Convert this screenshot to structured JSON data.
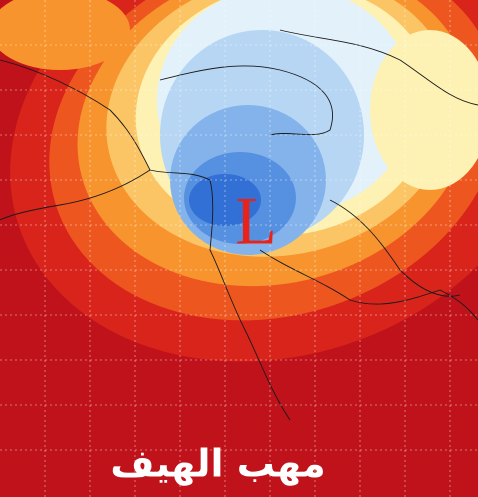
{
  "map": {
    "pressure_label": "L",
    "caption": "مهب الهيف"
  }
}
